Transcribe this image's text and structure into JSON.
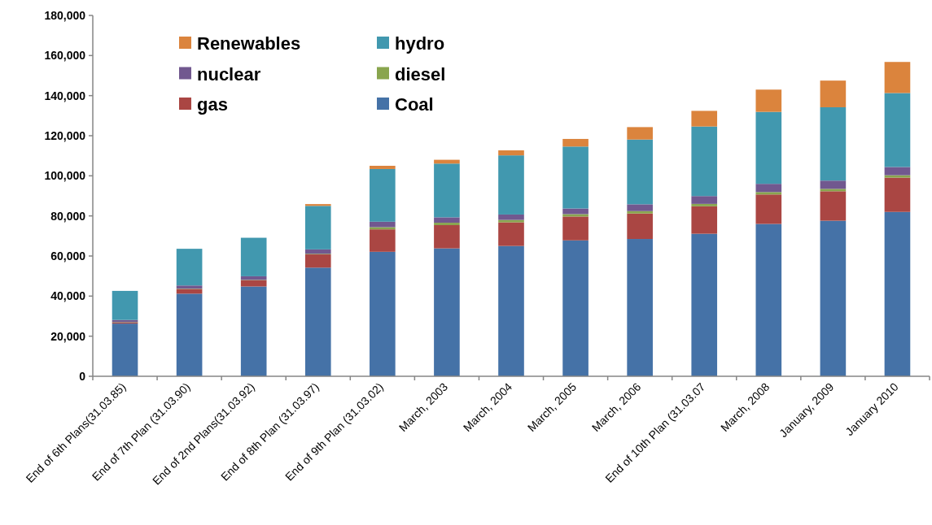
{
  "chart_data": {
    "type": "bar",
    "stacked": true,
    "categories": [
      "End of 6th Plans(31.03.85)",
      "End of 7th Plan (31.03.90)",
      "End of 2nd Plans(31.03.92)",
      "End of 8th Plan (31.03.97)",
      "End of 9th Plan (31.03.02)",
      "March, 2003",
      "March, 2004",
      "March, 2005",
      "March, 2006",
      "End of 10th Plan (31.03.07",
      "March, 2008",
      "January, 2009",
      "January 2010"
    ],
    "series": [
      {
        "name": "Coal",
        "color": "#4572a7",
        "values": [
          26300,
          41200,
          44800,
          54200,
          62100,
          63800,
          65000,
          67800,
          68500,
          71100,
          76000,
          77600,
          82000
        ]
      },
      {
        "name": "gas",
        "color": "#aa4643",
        "values": [
          500,
          2300,
          3100,
          6600,
          11200,
          11600,
          11800,
          11900,
          12700,
          13700,
          14700,
          14700,
          17100
        ]
      },
      {
        "name": "diesel",
        "color": "#89a54e",
        "values": [
          200,
          200,
          200,
          300,
          1100,
          1200,
          1200,
          1200,
          1200,
          1200,
          1200,
          1200,
          1200
        ]
      },
      {
        "name": "nuclear",
        "color": "#71588f",
        "values": [
          1100,
          1600,
          1800,
          2200,
          2700,
          2700,
          2700,
          2800,
          3400,
          3900,
          4100,
          4100,
          4100
        ]
      },
      {
        "name": "hydro",
        "color": "#4198af",
        "values": [
          14500,
          18300,
          19200,
          21700,
          26300,
          26800,
          29500,
          30900,
          32300,
          34700,
          35900,
          36600,
          36900
        ]
      },
      {
        "name": "Renewables",
        "color": "#db843d",
        "values": [
          0,
          0,
          0,
          900,
          1600,
          1900,
          2500,
          3800,
          6200,
          7800,
          11100,
          13300,
          15500
        ]
      }
    ],
    "ylim": [
      0,
      180000
    ],
    "yticks": [
      0,
      {
        "value": 20000,
        "label": "20,000"
      },
      {
        "value": 40000,
        "label": "40,000"
      },
      {
        "value": 60000,
        "label": "60,000"
      },
      {
        "value": 80000,
        "label": "80,000"
      },
      {
        "value": 100000,
        "label": "100,000"
      },
      {
        "value": 120000,
        "label": "120,000"
      },
      {
        "value": 140000,
        "label": "140,000"
      },
      {
        "value": 160000,
        "label": "160,000"
      },
      {
        "value": 180000,
        "label": "180,000"
      }
    ],
    "legend": "top left",
    "grid": false
  }
}
